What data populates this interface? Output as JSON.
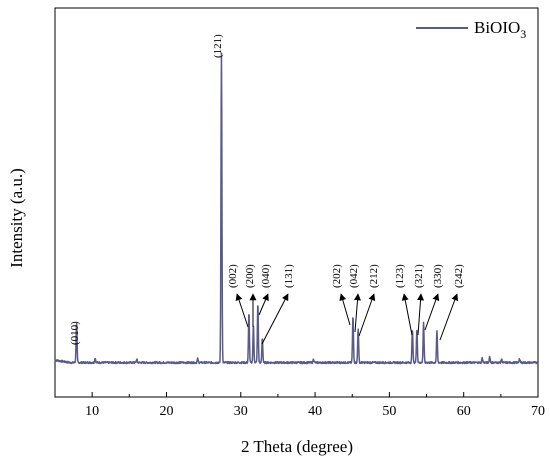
{
  "chart_data": {
    "type": "line",
    "xlabel": "2 Theta (degree)",
    "ylabel": "Intensity (a.u.)",
    "xlim": [
      5,
      70
    ],
    "xticks": [
      10,
      20,
      30,
      40,
      50,
      60,
      70
    ],
    "y_tick_labels_shown": false,
    "grid": false,
    "legend_position": "top-right",
    "series": [
      {
        "name_prefix": "BiOIO",
        "name_subscript": "3",
        "color": "#5a5a8a",
        "baseline_level": 0.04,
        "peaks": [
          {
            "x": 7.9,
            "y": 0.13
          },
          {
            "x": 10.4,
            "y": 0.015
          },
          {
            "x": 16.0,
            "y": 0.01
          },
          {
            "x": 24.2,
            "y": 0.012
          },
          {
            "x": 27.4,
            "y": 1.0
          },
          {
            "x": 31.1,
            "y": 0.16
          },
          {
            "x": 31.7,
            "y": 0.12
          },
          {
            "x": 32.3,
            "y": 0.19
          },
          {
            "x": 32.9,
            "y": 0.08
          },
          {
            "x": 39.8,
            "y": 0.012
          },
          {
            "x": 45.1,
            "y": 0.15
          },
          {
            "x": 45.8,
            "y": 0.11
          },
          {
            "x": 53.1,
            "y": 0.11
          },
          {
            "x": 53.7,
            "y": 0.11
          },
          {
            "x": 54.6,
            "y": 0.13
          },
          {
            "x": 56.4,
            "y": 0.1
          },
          {
            "x": 62.5,
            "y": 0.015
          },
          {
            "x": 63.5,
            "y": 0.02
          },
          {
            "x": 65.1,
            "y": 0.012
          },
          {
            "x": 67.5,
            "y": 0.012
          }
        ]
      }
    ],
    "annotations": [
      {
        "label": "(010)",
        "x": 7.9
      },
      {
        "label": "(121)",
        "x": 27.4
      },
      {
        "label": "(002)",
        "x": 31.1
      },
      {
        "label": "(200)",
        "x": 31.7
      },
      {
        "label": "(040)",
        "x": 32.3
      },
      {
        "label": "(131)",
        "x": 32.9
      },
      {
        "label": "(202)",
        "x": 45.1
      },
      {
        "label": "(042)",
        "x": 45.6
      },
      {
        "label": "(212)",
        "x": 45.8
      },
      {
        "label": "(123)",
        "x": 53.1
      },
      {
        "label": "(321)",
        "x": 53.7
      },
      {
        "label": "(330)",
        "x": 54.6
      },
      {
        "label": "(242)",
        "x": 56.4
      }
    ]
  }
}
